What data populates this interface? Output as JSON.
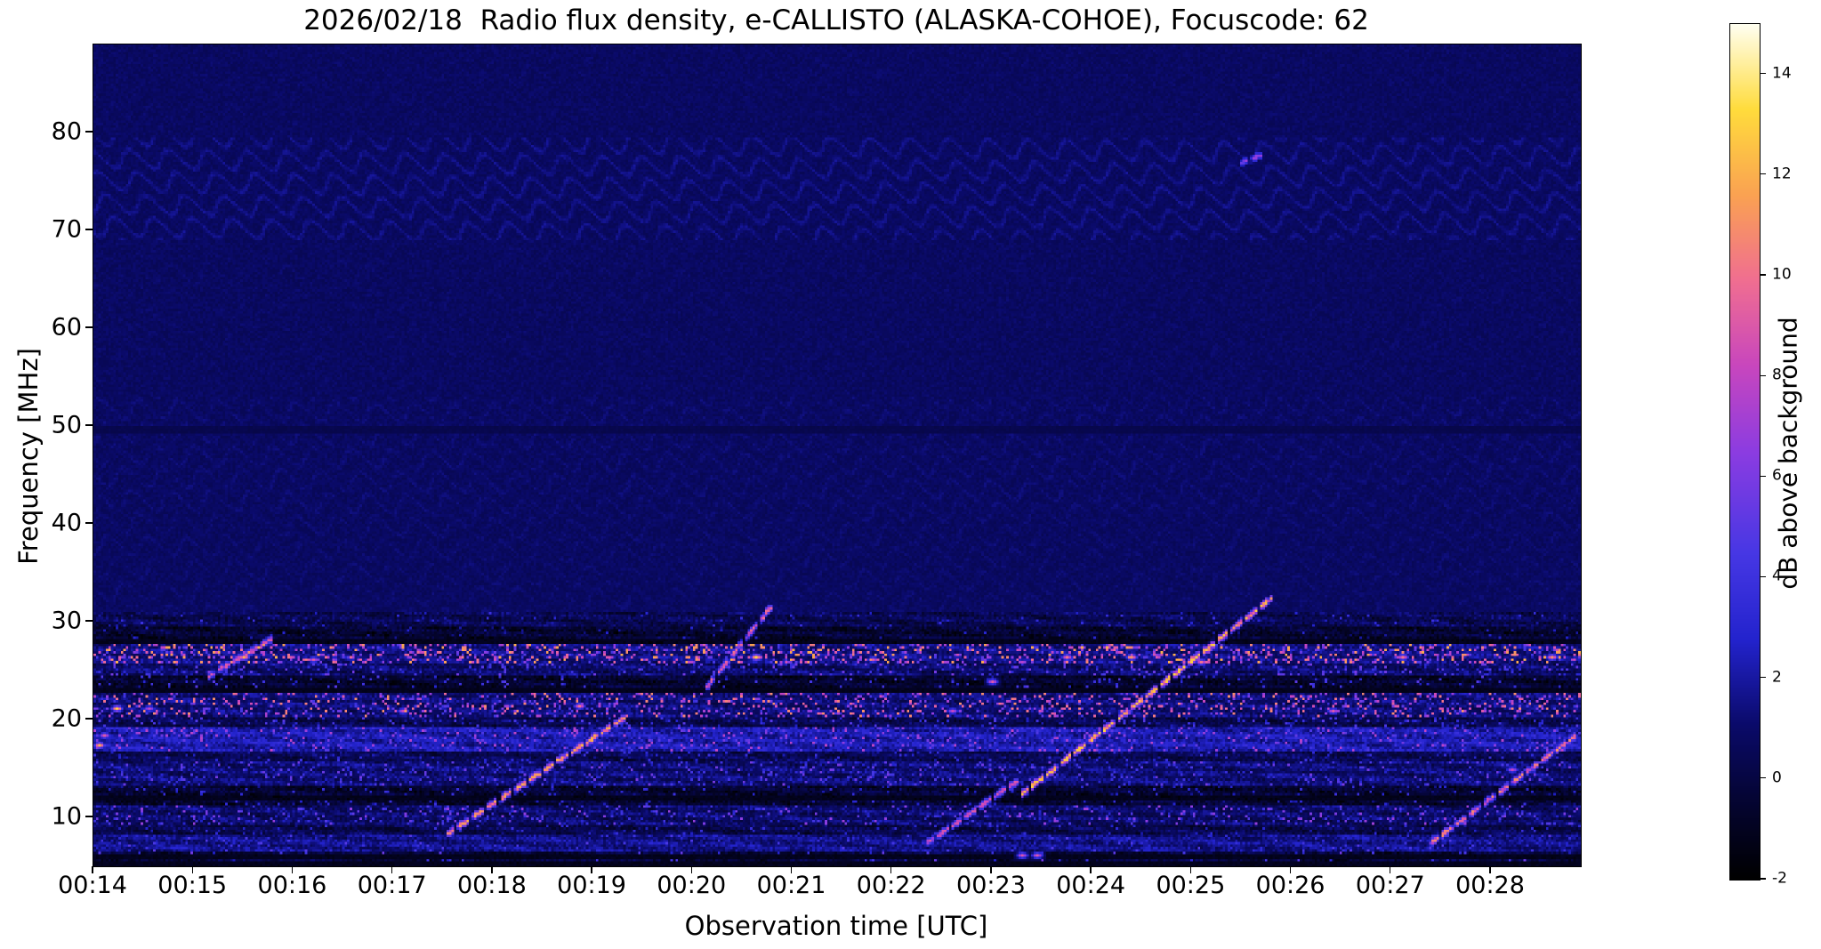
{
  "chart_data": {
    "type": "heatmap",
    "title": "2026/02/18  Radio flux density, e-CALLISTO (ALASKA-COHOE), Focuscode: 62",
    "xlabel": "Observation time [UTC]",
    "ylabel": "Frequency [MHz]",
    "x_tick_labels": [
      "00:14",
      "00:15",
      "00:16",
      "00:17",
      "00:18",
      "00:19",
      "00:20",
      "00:21",
      "00:22",
      "00:23",
      "00:24",
      "00:25",
      "00:26",
      "00:27",
      "00:28"
    ],
    "x_tick_minutes": [
      0,
      1,
      2,
      3,
      4,
      5,
      6,
      7,
      8,
      9,
      10,
      11,
      12,
      13,
      14
    ],
    "x_range_minutes": [
      0,
      14.9
    ],
    "y_tick_labels": [
      10,
      20,
      30,
      40,
      50,
      60,
      70,
      80
    ],
    "y_range_mhz": [
      5,
      89
    ],
    "grid": false,
    "colorbar": {
      "label": "dB above background",
      "tick_labels": [
        -2,
        0,
        2,
        4,
        6,
        8,
        10,
        12,
        14
      ],
      "vmin": -2,
      "vmax": 15,
      "stops": [
        [
          0.0,
          [
            0,
            0,
            0
          ]
        ],
        [
          0.1,
          [
            5,
            5,
            55
          ]
        ],
        [
          0.18,
          [
            10,
            10,
            105
          ]
        ],
        [
          0.28,
          [
            35,
            35,
            205
          ]
        ],
        [
          0.38,
          [
            70,
            55,
            228
          ]
        ],
        [
          0.5,
          [
            140,
            60,
            225
          ]
        ],
        [
          0.6,
          [
            200,
            70,
            190
          ]
        ],
        [
          0.7,
          [
            240,
            110,
            145
          ]
        ],
        [
          0.8,
          [
            250,
            162,
            82
          ]
        ],
        [
          0.9,
          [
            255,
            220,
            60
          ]
        ],
        [
          1.0,
          [
            255,
            255,
            242
          ]
        ]
      ]
    },
    "background_level_db": 0.8,
    "quiet_dark_line_mhz": 49.6,
    "ripple_bands_mhz": [
      [
        69,
        79.5
      ],
      [
        41,
        53
      ],
      [
        31,
        41
      ]
    ],
    "rfi_bands": [
      {
        "f0": 29.5,
        "f1": 31.0,
        "base": 0.2,
        "prob": 0.03,
        "max": 4
      },
      {
        "f0": 27.8,
        "f1": 29.5,
        "base": -0.7,
        "prob": 0.03,
        "max": 3
      },
      {
        "f0": 25.8,
        "f1": 27.8,
        "base": 1.2,
        "prob": 0.22,
        "max": 12
      },
      {
        "f0": 24.5,
        "f1": 25.8,
        "base": 0.7,
        "prob": 0.12,
        "max": 6
      },
      {
        "f0": 23.3,
        "f1": 24.5,
        "base": -0.8,
        "prob": 0.05,
        "max": 5
      },
      {
        "f0": 20.3,
        "f1": 23.3,
        "base": 1.0,
        "prob": 0.16,
        "max": 11
      },
      {
        "f0": 19.2,
        "f1": 20.3,
        "base": 0.1,
        "prob": 0.08,
        "max": 5
      },
      {
        "f0": 16.8,
        "f1": 19.2,
        "base": 2.0,
        "prob": 0.12,
        "max": 8
      },
      {
        "f0": 15.8,
        "f1": 16.8,
        "base": 0.2,
        "prob": 0.06,
        "max": 4
      },
      {
        "f0": 13.3,
        "f1": 15.8,
        "base": 0.9,
        "prob": 0.1,
        "max": 6
      },
      {
        "f0": 11.3,
        "f1": 13.3,
        "base": -0.7,
        "prob": 0.06,
        "max": 4
      },
      {
        "f0": 9.3,
        "f1": 11.3,
        "base": 0.7,
        "prob": 0.1,
        "max": 7
      },
      {
        "f0": 8.2,
        "f1": 9.3,
        "base": 0.0,
        "prob": 0.04,
        "max": 4
      },
      {
        "f0": 6.4,
        "f1": 8.2,
        "base": 1.3,
        "prob": 0.06,
        "max": 5
      },
      {
        "f0": 5.0,
        "f1": 6.4,
        "base": -0.4,
        "prob": 0.04,
        "max": 6
      }
    ],
    "dark_rows_mhz": [
      5.3,
      5.9,
      12.1,
      22.9,
      28.1
    ],
    "bursts": [
      {
        "t0": 1.15,
        "f0": 24.5,
        "t1": 1.8,
        "f1": 28.5,
        "v": 9
      },
      {
        "t0": 3.55,
        "f0": 8.5,
        "t1": 5.35,
        "f1": 20.5,
        "v": 12
      },
      {
        "t0": 6.15,
        "f0": 23.5,
        "t1": 6.8,
        "f1": 31.8,
        "v": 10
      },
      {
        "t0": 8.35,
        "f0": 7.5,
        "t1": 9.25,
        "f1": 13.8,
        "v": 9
      },
      {
        "t0": 9.3,
        "f0": 12.5,
        "t1": 11.8,
        "f1": 32.5,
        "v": 13
      },
      {
        "t0": 13.4,
        "f0": 7.5,
        "t1": 14.85,
        "f1": 18.5,
        "v": 11
      },
      {
        "t0": 11.5,
        "f0": 77.0,
        "t1": 11.72,
        "f1": 77.9,
        "v": 7
      }
    ],
    "blobs": [
      {
        "t": 0.06,
        "f": 17.6,
        "v": 12
      },
      {
        "t": 0.1,
        "f": 18.4,
        "v": 9
      },
      {
        "t": 0.22,
        "f": 21.2,
        "v": 13
      },
      {
        "t": 0.55,
        "f": 21.3,
        "v": 8
      },
      {
        "t": 1.5,
        "f": 26.6,
        "v": 12
      },
      {
        "t": 2.2,
        "f": 26.3,
        "v": 9
      },
      {
        "t": 3.1,
        "f": 21.1,
        "v": 8
      },
      {
        "t": 4.85,
        "f": 21.4,
        "v": 10
      },
      {
        "t": 6.62,
        "f": 26.6,
        "v": 13
      },
      {
        "t": 7.8,
        "f": 26.2,
        "v": 9
      },
      {
        "t": 8.6,
        "f": 21.1,
        "v": 8
      },
      {
        "t": 9.0,
        "f": 24.0,
        "v": 9
      },
      {
        "t": 9.3,
        "f": 6.3,
        "v": 9
      },
      {
        "t": 9.45,
        "f": 6.3,
        "v": 9
      },
      {
        "t": 9.75,
        "f": 26.4,
        "v": 10
      },
      {
        "t": 10.4,
        "f": 26.5,
        "v": 11
      },
      {
        "t": 11.1,
        "f": 25.9,
        "v": 10
      },
      {
        "t": 12.4,
        "f": 21.0,
        "v": 9
      },
      {
        "t": 13.1,
        "f": 26.4,
        "v": 10
      },
      {
        "t": 14.2,
        "f": 15.0,
        "v": 8
      },
      {
        "t": 14.6,
        "f": 26.6,
        "v": 11
      }
    ]
  }
}
